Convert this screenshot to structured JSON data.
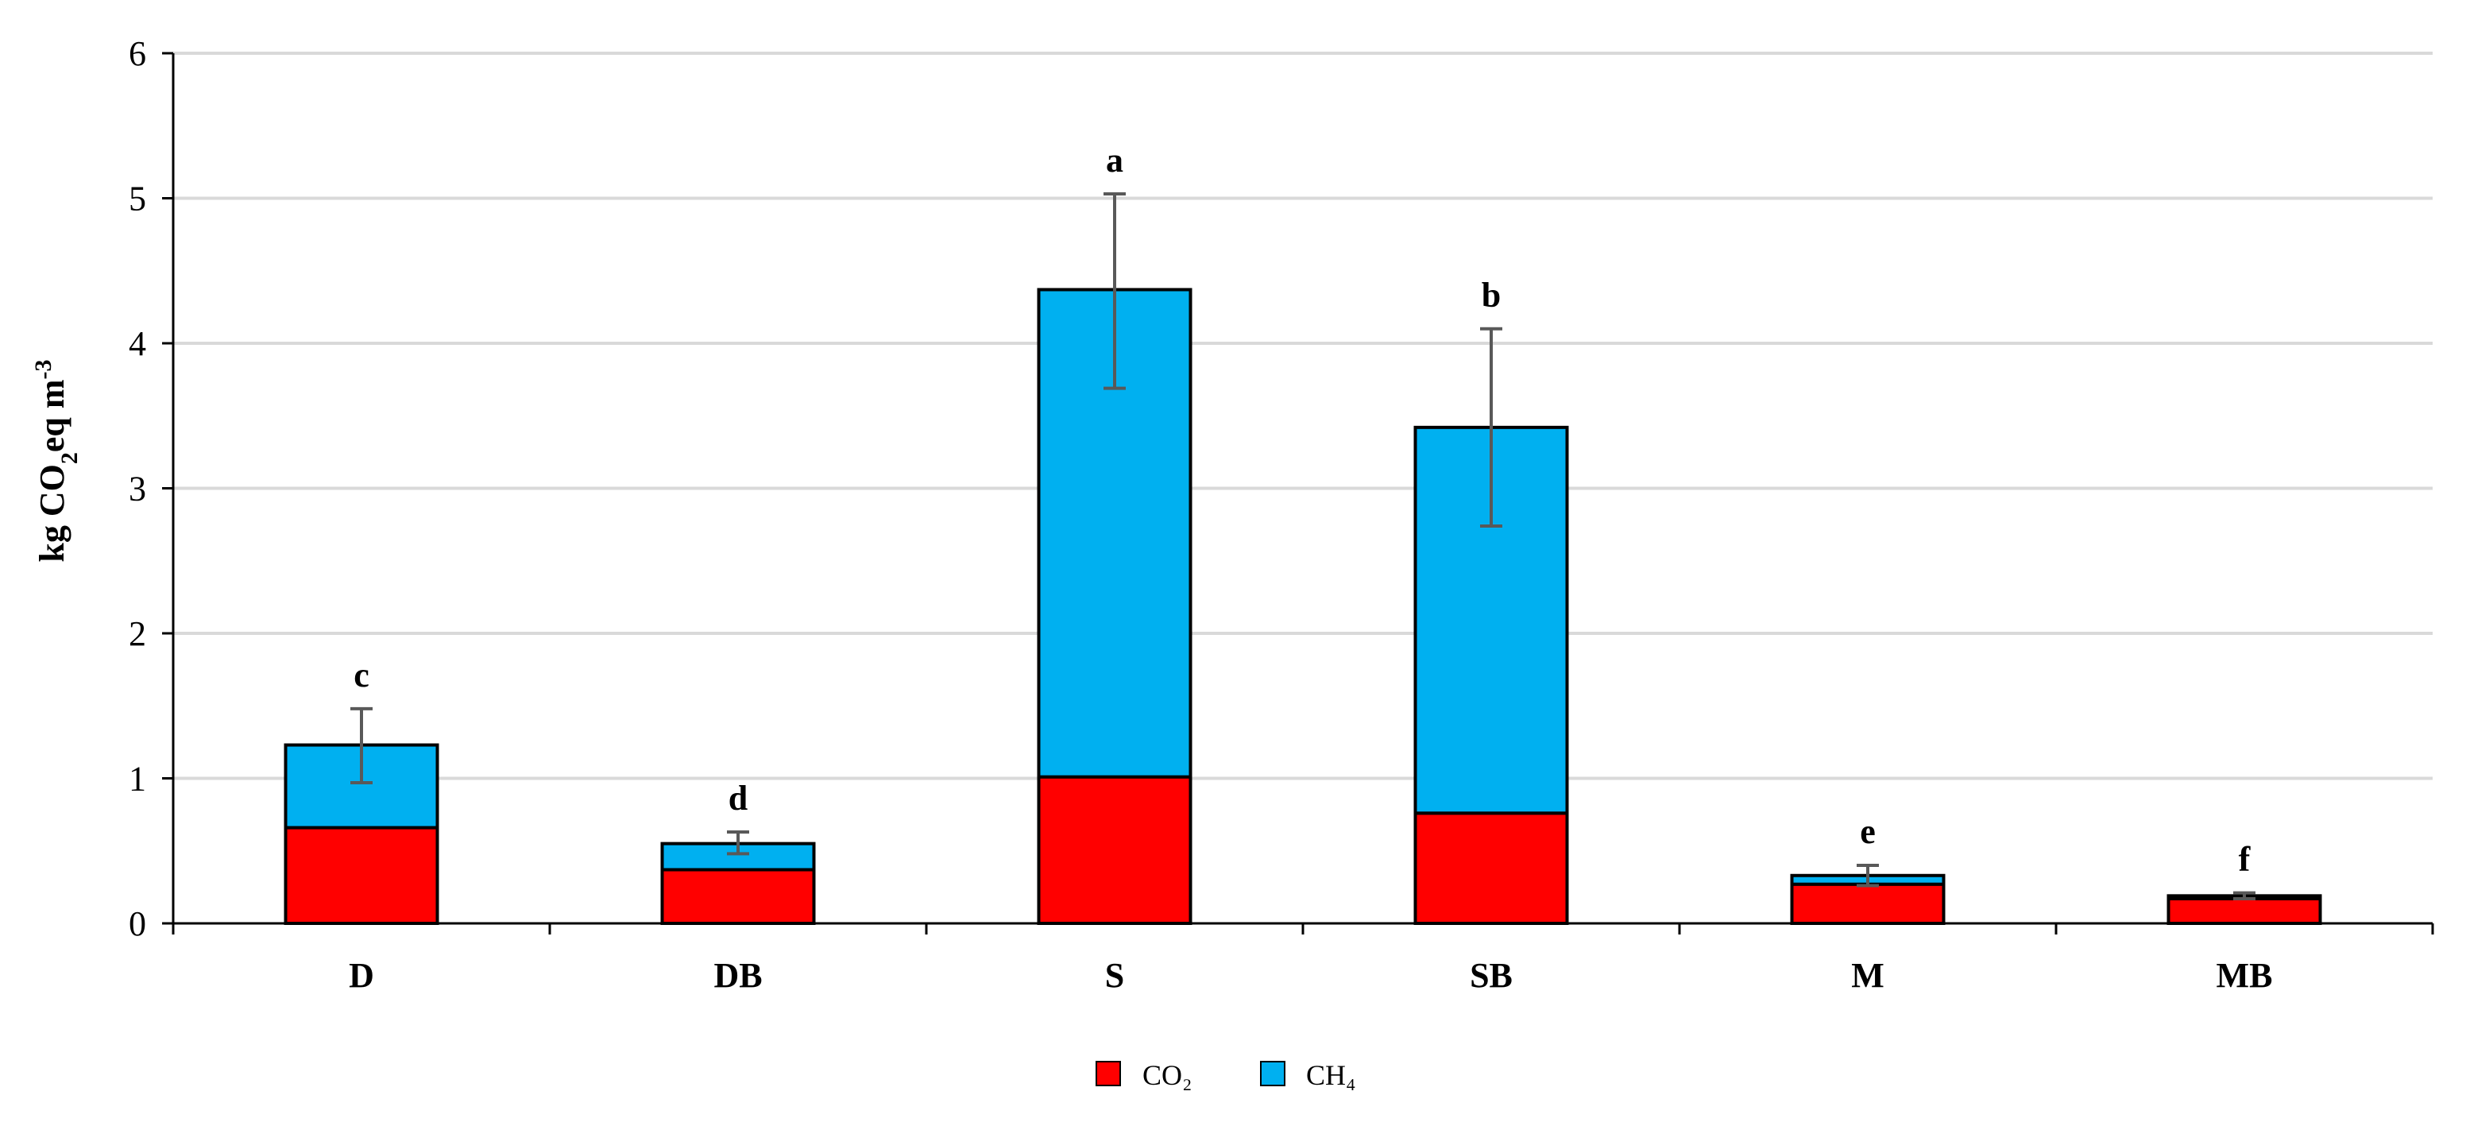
{
  "chart_data": {
    "type": "bar",
    "stacked": true,
    "categories": [
      "D",
      "DB",
      "S",
      "SB",
      "M",
      "MB"
    ],
    "series": [
      {
        "name": "CO₂",
        "color": "#ff0000",
        "values": [
          0.66,
          0.37,
          1.01,
          0.76,
          0.27,
          0.17
        ]
      },
      {
        "name": "CH₄",
        "color": "#00b0f0",
        "values": [
          0.57,
          0.18,
          3.36,
          2.66,
          0.06,
          0.02
        ]
      }
    ],
    "totals": [
      1.23,
      0.55,
      4.37,
      3.42,
      0.33,
      0.19
    ],
    "error_bars": [
      {
        "low": 0.97,
        "high": 1.48
      },
      {
        "low": 0.48,
        "high": 0.63
      },
      {
        "low": 3.69,
        "high": 5.03
      },
      {
        "low": 2.74,
        "high": 4.1
      },
      {
        "low": 0.26,
        "high": 0.4
      },
      {
        "low": 0.17,
        "high": 0.21
      }
    ],
    "significance_letters": [
      "c",
      "d",
      "a",
      "b",
      "e",
      "f"
    ],
    "ylabel": {
      "prefix": "kg CO",
      "sub": "2",
      "middle": "eq m",
      "sup": "-3"
    },
    "ylim": [
      0,
      6
    ],
    "yticks": [
      0,
      1,
      2,
      3,
      4,
      5,
      6
    ],
    "xlabel": "",
    "title": "",
    "grid": true,
    "legend_position": "bottom-center"
  }
}
